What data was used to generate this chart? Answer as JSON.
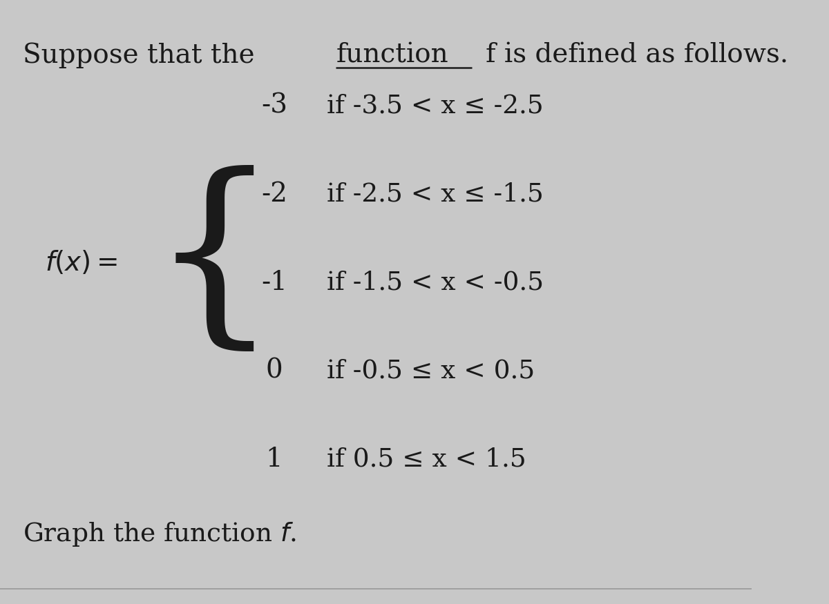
{
  "pieces": [
    {
      "value": "-3",
      "condition": "if -3.5 < x ≤ -2.5"
    },
    {
      "value": "-2",
      "condition": "if -2.5 < x ≤ -1.5"
    },
    {
      "value": "-1",
      "condition": "if -1.5 < x < -0.5"
    },
    {
      "value": "0",
      "condition": "if -0.5 ≤ x < 0.5"
    },
    {
      "value": "1",
      "condition": "if 0.5 ≤ x < 1.5"
    }
  ],
  "bg_color": "#c8c8c8",
  "text_color": "#1a1a1a",
  "font_size_title": 28,
  "font_size_body": 27,
  "font_size_bottom": 27
}
